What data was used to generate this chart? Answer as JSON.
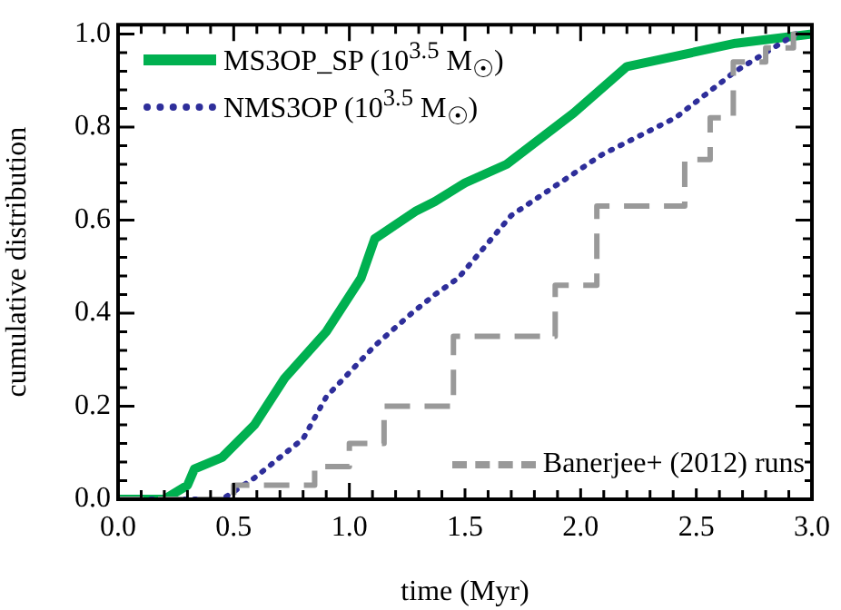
{
  "chart_data": {
    "type": "line",
    "xlabel": "time (Myr)",
    "ylabel": "cumulative distribution",
    "xlim": [
      0,
      3
    ],
    "ylim": [
      0,
      1.02
    ],
    "xticks": [
      {
        "value": 0,
        "label": "0.0"
      },
      {
        "value": 0.5,
        "label": "0.5"
      },
      {
        "value": 1,
        "label": "1.0"
      },
      {
        "value": 1.5,
        "label": "1.5"
      },
      {
        "value": 2,
        "label": "2.0"
      },
      {
        "value": 2.5,
        "label": "2.5"
      },
      {
        "value": 3,
        "label": "3.0"
      }
    ],
    "yticks": [
      {
        "value": 0,
        "label": "0.0"
      },
      {
        "value": 0.2,
        "label": "0.2"
      },
      {
        "value": 0.4,
        "label": "0.4"
      },
      {
        "value": 0.6,
        "label": "0.6"
      },
      {
        "value": 0.8,
        "label": "0.8"
      },
      {
        "value": 1,
        "label": "1.0"
      }
    ],
    "legend": "top left",
    "marker": "none",
    "series": [
      {
        "name": "MS3OP_SP (10$^{3.5}$ M$_{☉}$)",
        "type": "line",
        "line_style": "solid",
        "color": "#00b050",
        "x": [
          0,
          0.2,
          0.3,
          0.33,
          0.45,
          0.59,
          0.72,
          0.9,
          1.05,
          1.11,
          1.29,
          1.37,
          1.5,
          1.68,
          1.97,
          2.2,
          2.67,
          3.0
        ],
        "values": [
          0,
          0,
          0.03,
          0.065,
          0.09,
          0.16,
          0.26,
          0.36,
          0.475,
          0.56,
          0.62,
          0.64,
          0.68,
          0.72,
          0.83,
          0.93,
          0.98,
          1.0
        ]
      },
      {
        "name": "NMS3OP (10$^{3.5}$ M$_{☉}$)",
        "type": "line",
        "line_style": "dotted",
        "color": "#2e2e9a",
        "x": [
          0,
          0.45,
          0.59,
          0.8,
          0.9,
          1.11,
          1.27,
          1.37,
          1.47,
          1.7,
          2.09,
          2.41,
          2.67,
          2.93
        ],
        "values": [
          0,
          0,
          0.046,
          0.13,
          0.22,
          0.33,
          0.4,
          0.44,
          0.475,
          0.61,
          0.74,
          0.82,
          0.92,
          1.0
        ]
      },
      {
        "name": "Banerjee+ (2012) runs",
        "type": "step",
        "line_style": "dashed",
        "color": "#999999",
        "x": [
          0,
          0.5,
          0.85,
          1.0,
          1.15,
          1.45,
          1.89,
          2.07,
          2.45,
          2.56,
          2.66,
          2.8,
          2.92,
          3.0
        ],
        "values": [
          0,
          0.03,
          0.07,
          0.12,
          0.2,
          0.35,
          0.46,
          0.63,
          0.73,
          0.82,
          0.94,
          0.97,
          1.0,
          1.0
        ]
      }
    ]
  }
}
